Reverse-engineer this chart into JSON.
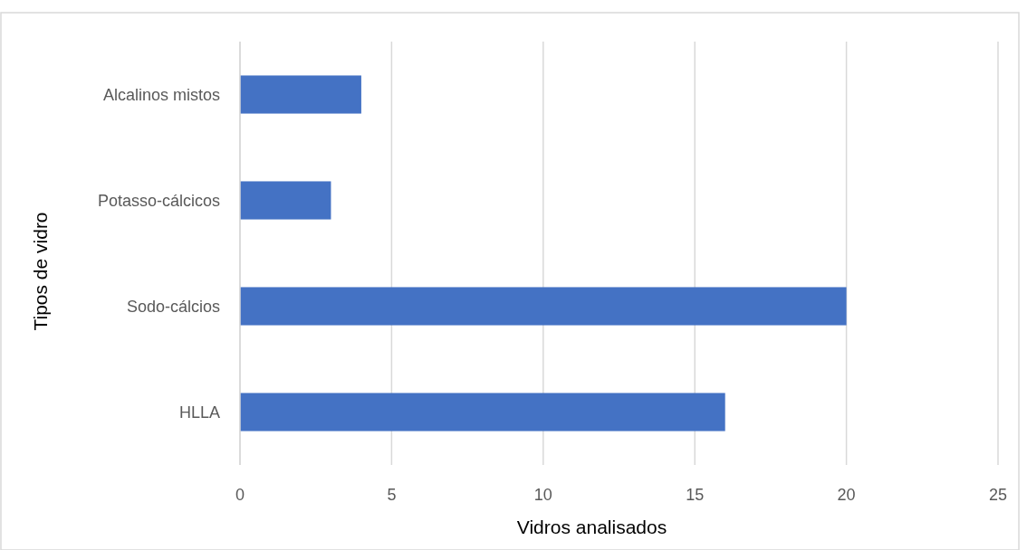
{
  "chart_data": {
    "type": "bar",
    "orientation": "horizontal",
    "categories": [
      "Alcalinos mistos",
      "Potasso-cálcicos",
      "Sodo-cálcios",
      "HLLA"
    ],
    "values": [
      4,
      3,
      20,
      16
    ],
    "color": "#4472c4",
    "xlim": [
      0,
      25
    ],
    "xticks": [
      0,
      5,
      10,
      15,
      20,
      25
    ],
    "grid": "x",
    "xlabel": "Vidros analisados",
    "ylabel": "Tipos de vidro"
  }
}
